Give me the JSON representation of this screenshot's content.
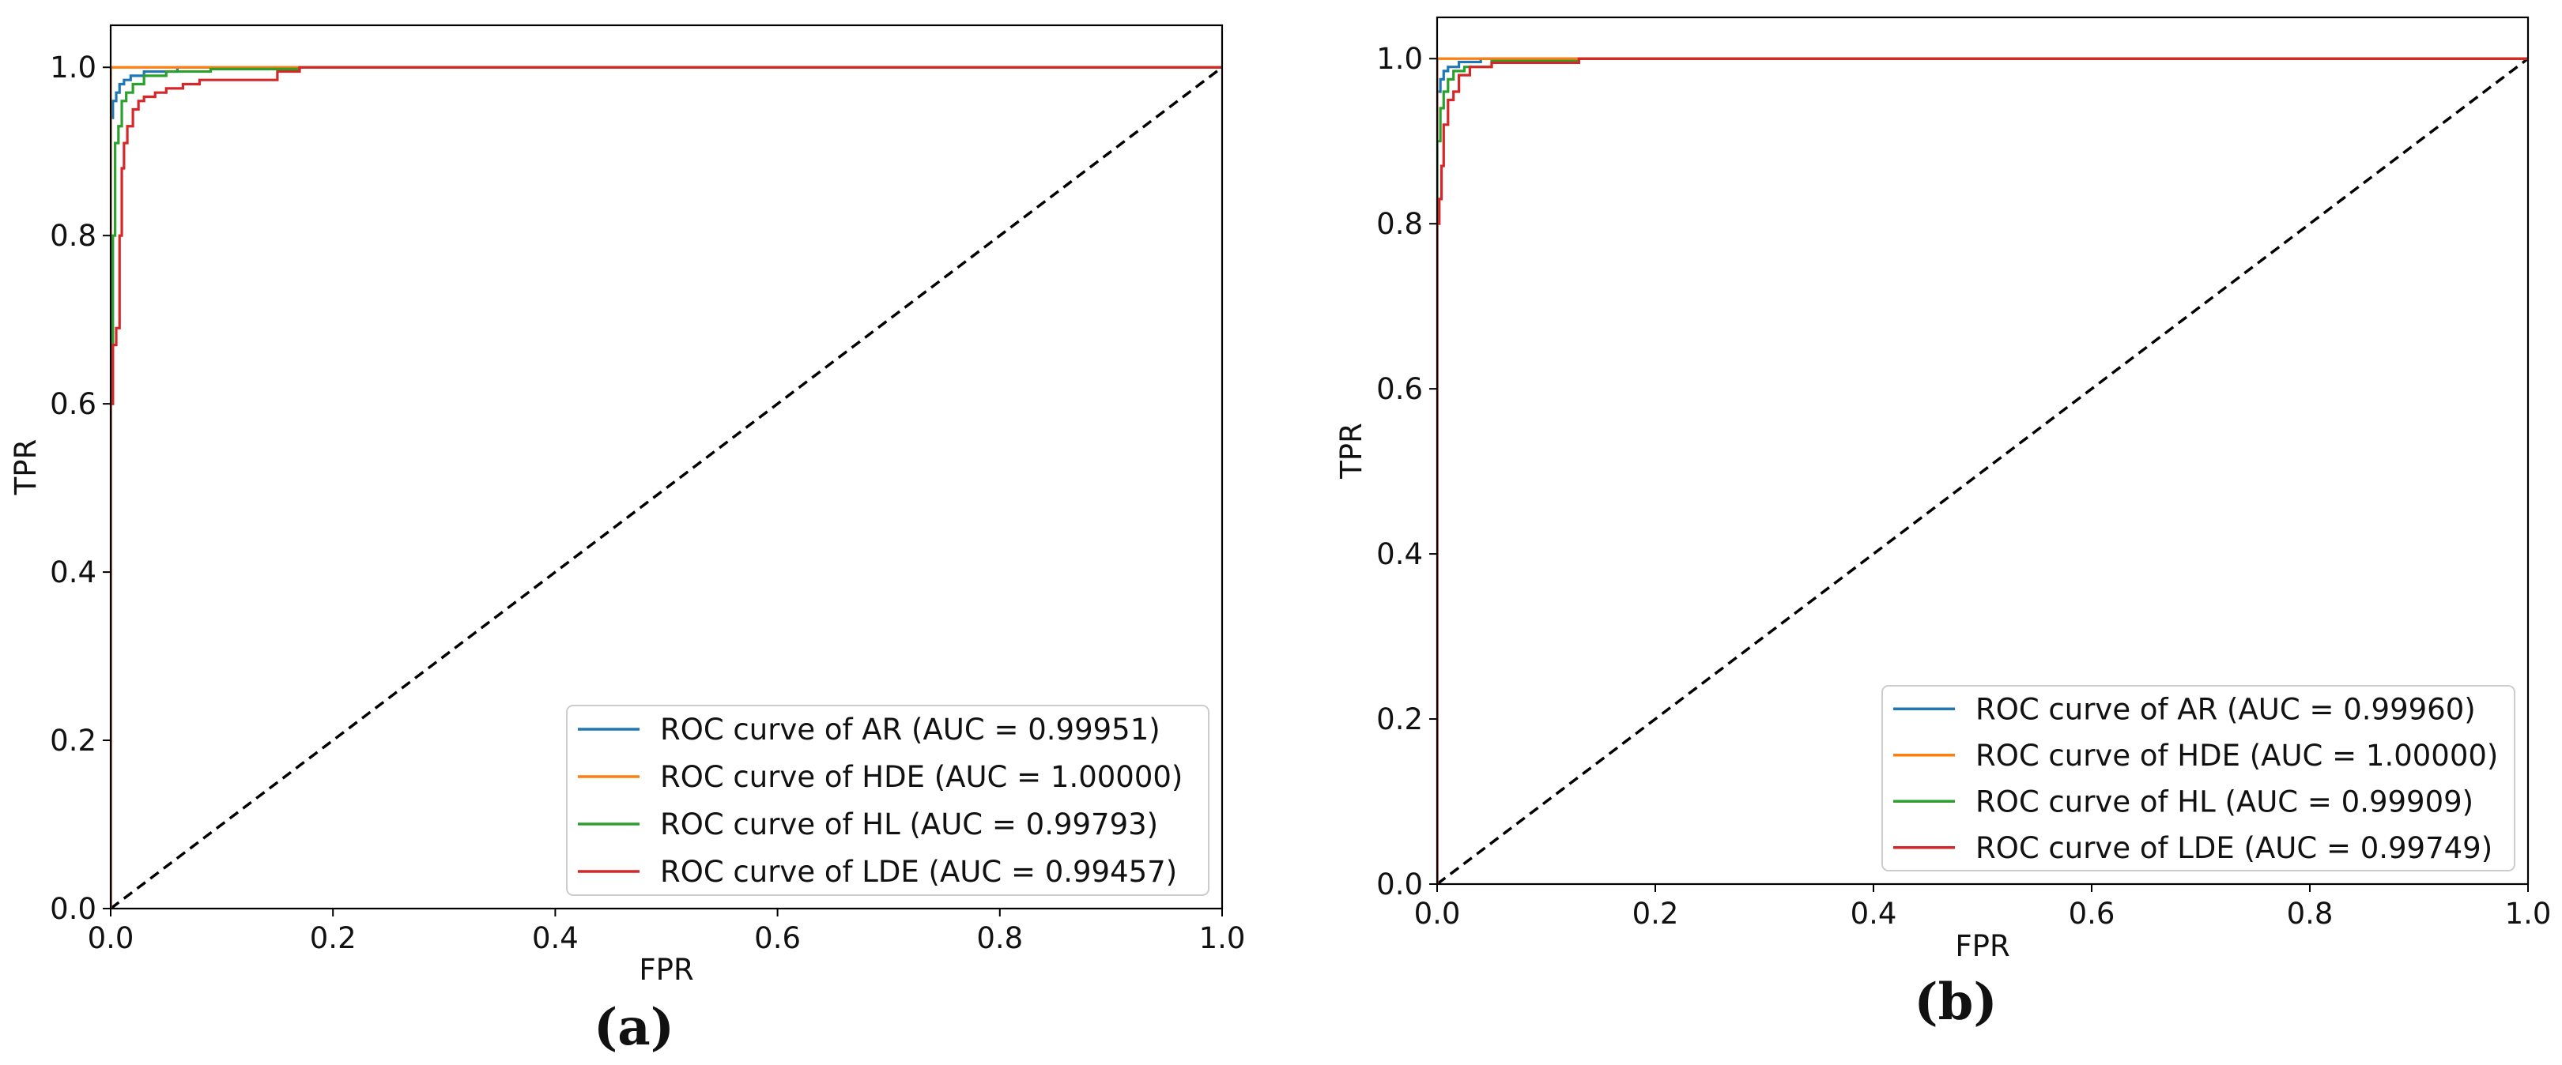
{
  "chart_data": [
    {
      "type": "line",
      "panel_label": "(a)",
      "xlabel": "FPR",
      "ylabel": "TPR",
      "xlim": [
        0,
        1
      ],
      "ylim": [
        0,
        1.05
      ],
      "x_ticks": [
        "0.0",
        "0.2",
        "0.4",
        "0.6",
        "0.8",
        "1.0"
      ],
      "y_ticks": [
        "0.0",
        "0.2",
        "0.4",
        "0.6",
        "0.8",
        "1.0"
      ],
      "grid": false,
      "legend_position": "lower-right",
      "reference_line": {
        "x": [
          0,
          1
        ],
        "y": [
          0,
          1
        ],
        "style": "dashed",
        "color": "#000000"
      },
      "series": [
        {
          "name": "ROC curve of AR (AUC = 0.99951)",
          "color": "#1f77b4",
          "x": [
            0,
            0,
            0.002,
            0.002,
            0.005,
            0.005,
            0.008,
            0.008,
            0.012,
            0.012,
            0.018,
            0.018,
            0.03,
            0.03,
            0.06,
            0.06,
            1.0
          ],
          "y": [
            0,
            0.94,
            0.94,
            0.96,
            0.96,
            0.97,
            0.97,
            0.98,
            0.98,
            0.985,
            0.985,
            0.99,
            0.99,
            0.995,
            0.995,
            1.0,
            1.0
          ]
        },
        {
          "name": "ROC curve of HDE (AUC = 1.00000)",
          "color": "#ff7f0e",
          "x": [
            0,
            0,
            1.0
          ],
          "y": [
            0,
            1.0,
            1.0
          ]
        },
        {
          "name": "ROC curve of HL (AUC = 0.99793)",
          "color": "#2ca02c",
          "x": [
            0,
            0,
            0.002,
            0.002,
            0.004,
            0.004,
            0.007,
            0.007,
            0.01,
            0.01,
            0.014,
            0.014,
            0.02,
            0.02,
            0.03,
            0.03,
            0.05,
            0.05,
            0.09,
            0.09,
            0.17,
            0.17,
            1.0
          ],
          "y": [
            0,
            0.6,
            0.6,
            0.8,
            0.8,
            0.91,
            0.91,
            0.93,
            0.93,
            0.96,
            0.96,
            0.97,
            0.97,
            0.98,
            0.98,
            0.99,
            0.99,
            0.995,
            0.995,
            0.998,
            0.998,
            1.0,
            1.0
          ]
        },
        {
          "name": "ROC curve of LDE (AUC = 0.99457)",
          "color": "#d62728",
          "x": [
            0,
            0,
            0.002,
            0.002,
            0.005,
            0.005,
            0.008,
            0.008,
            0.01,
            0.01,
            0.012,
            0.012,
            0.015,
            0.015,
            0.02,
            0.02,
            0.025,
            0.025,
            0.03,
            0.03,
            0.04,
            0.04,
            0.05,
            0.05,
            0.065,
            0.065,
            0.08,
            0.08,
            0.11,
            0.11,
            0.15,
            0.15,
            0.17,
            0.17,
            1.0
          ],
          "y": [
            0,
            0.6,
            0.6,
            0.67,
            0.67,
            0.69,
            0.69,
            0.8,
            0.8,
            0.88,
            0.88,
            0.91,
            0.91,
            0.93,
            0.93,
            0.95,
            0.95,
            0.96,
            0.96,
            0.965,
            0.965,
            0.97,
            0.97,
            0.975,
            0.975,
            0.98,
            0.98,
            0.985,
            0.985,
            0.985,
            0.985,
            0.995,
            0.995,
            1.0,
            1.0
          ]
        }
      ]
    },
    {
      "type": "line",
      "panel_label": "(b)",
      "xlabel": "FPR",
      "ylabel": "TPR",
      "xlim": [
        0,
        1
      ],
      "ylim": [
        0,
        1.05
      ],
      "x_ticks": [
        "0.0",
        "0.2",
        "0.4",
        "0.6",
        "0.8",
        "1.0"
      ],
      "y_ticks": [
        "0.0",
        "0.2",
        "0.4",
        "0.6",
        "0.8",
        "1.0"
      ],
      "grid": false,
      "legend_position": "lower-right",
      "reference_line": {
        "x": [
          0,
          1
        ],
        "y": [
          0,
          1
        ],
        "style": "dashed",
        "color": "#000000"
      },
      "series": [
        {
          "name": "ROC curve of AR (AUC = 0.99960)",
          "color": "#1f77b4",
          "x": [
            0,
            0,
            0.003,
            0.003,
            0.006,
            0.006,
            0.01,
            0.01,
            0.02,
            0.02,
            0.04,
            0.04,
            1.0
          ],
          "y": [
            0,
            0.96,
            0.96,
            0.975,
            0.975,
            0.985,
            0.985,
            0.99,
            0.99,
            0.996,
            0.996,
            1.0,
            1.0
          ]
        },
        {
          "name": "ROC curve of HDE (AUC = 1.00000)",
          "color": "#ff7f0e",
          "x": [
            0,
            0,
            1.0
          ],
          "y": [
            0,
            1.0,
            1.0
          ]
        },
        {
          "name": "ROC curve of HL (AUC = 0.99909)",
          "color": "#2ca02c",
          "x": [
            0,
            0,
            0.003,
            0.003,
            0.006,
            0.006,
            0.01,
            0.01,
            0.015,
            0.015,
            0.025,
            0.025,
            0.05,
            0.05,
            0.13,
            0.13,
            1.0
          ],
          "y": [
            0,
            0.9,
            0.9,
            0.94,
            0.94,
            0.96,
            0.96,
            0.975,
            0.975,
            0.985,
            0.985,
            0.99,
            0.99,
            0.997,
            0.997,
            1.0,
            1.0
          ]
        },
        {
          "name": "ROC curve of LDE (AUC = 0.99749)",
          "color": "#d62728",
          "x": [
            0,
            0,
            0.002,
            0.002,
            0.004,
            0.004,
            0.006,
            0.006,
            0.01,
            0.01,
            0.015,
            0.015,
            0.02,
            0.02,
            0.03,
            0.03,
            0.05,
            0.05,
            0.13,
            0.13,
            1.0
          ],
          "y": [
            0,
            0.8,
            0.8,
            0.83,
            0.83,
            0.87,
            0.87,
            0.92,
            0.92,
            0.95,
            0.95,
            0.96,
            0.96,
            0.98,
            0.98,
            0.99,
            0.99,
            0.995,
            0.995,
            1.0,
            1.0
          ]
        }
      ]
    }
  ]
}
